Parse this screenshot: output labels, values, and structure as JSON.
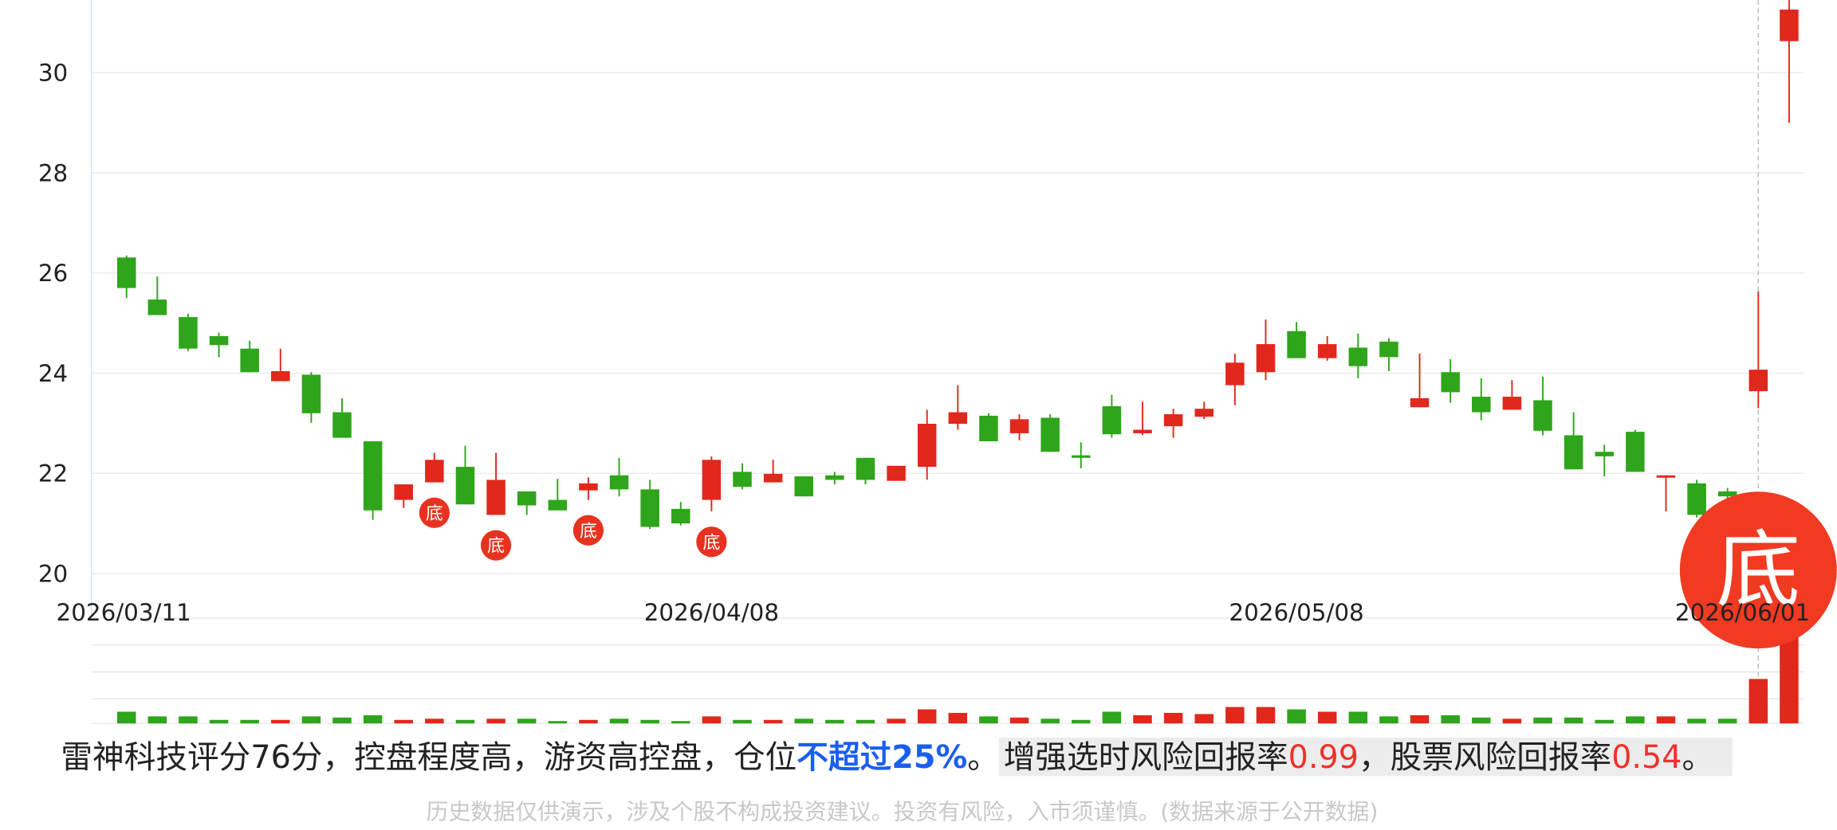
{
  "chart_data": {
    "type": "candlestick",
    "categories": [
      "2026/03/11",
      null,
      null,
      null,
      null,
      null,
      null,
      null,
      null,
      null,
      null,
      null,
      null,
      null,
      null,
      null,
      null,
      null,
      null,
      "2026/04/08",
      null,
      null,
      null,
      null,
      null,
      null,
      null,
      null,
      null,
      null,
      null,
      null,
      null,
      null,
      null,
      null,
      null,
      null,
      "2026/05/08",
      null,
      null,
      null,
      null,
      null,
      null,
      null,
      null,
      null,
      null,
      null,
      null,
      null,
      null,
      "2026/06/01",
      null
    ],
    "open": [
      26.31,
      25.47,
      25.12,
      24.74,
      24.49,
      23.84,
      23.97,
      23.22,
      22.64,
      21.47,
      21.82,
      22.13,
      21.17,
      21.64,
      21.47,
      21.66,
      21.96,
      21.68,
      21.29,
      21.47,
      22.03,
      21.82,
      21.94,
      21.96,
      22.31,
      21.85,
      22.13,
      22.99,
      23.15,
      22.8,
      23.11,
      22.36,
      23.34,
      22.8,
      22.94,
      23.13,
      23.76,
      24.02,
      24.84,
      24.3,
      24.51,
      24.63,
      23.32,
      24.02,
      23.53,
      23.27,
      23.46,
      22.76,
      22.43,
      22.83,
      21.92,
      21.8,
      21.64,
      23.64,
      30.63
    ],
    "high": [
      26.35,
      25.93,
      25.19,
      24.81,
      24.65,
      24.49,
      24.02,
      23.5,
      22.64,
      21.78,
      22.41,
      22.55,
      22.41,
      21.64,
      21.89,
      21.92,
      22.31,
      21.87,
      21.43,
      22.34,
      22.2,
      22.27,
      21.94,
      22.03,
      22.31,
      22.15,
      23.27,
      23.76,
      23.2,
      23.18,
      23.18,
      22.62,
      23.57,
      23.43,
      23.29,
      23.43,
      24.39,
      25.07,
      25.02,
      24.74,
      24.79,
      24.7,
      24.39,
      24.28,
      23.9,
      23.86,
      23.93,
      23.22,
      22.57,
      22.87,
      21.96,
      21.87,
      21.71,
      25.63,
      31.45
    ],
    "low": [
      25.5,
      25.16,
      24.44,
      24.32,
      24.02,
      23.9,
      23.01,
      22.71,
      21.07,
      21.31,
      21.82,
      21.38,
      21.17,
      21.17,
      21.26,
      21.47,
      21.54,
      20.89,
      20.96,
      21.24,
      21.68,
      21.82,
      21.54,
      21.78,
      21.78,
      21.85,
      21.87,
      22.87,
      22.64,
      22.66,
      22.43,
      22.1,
      22.71,
      22.76,
      22.71,
      23.08,
      23.36,
      23.86,
      24.3,
      24.25,
      23.9,
      24.04,
      23.32,
      23.41,
      23.06,
      23.27,
      22.76,
      22.08,
      21.94,
      22.03,
      21.24,
      21.12,
      21.4,
      23.3,
      29.0
    ],
    "close": [
      25.7,
      25.16,
      24.49,
      24.56,
      24.02,
      24.04,
      23.2,
      22.71,
      21.26,
      21.78,
      22.27,
      21.38,
      21.87,
      21.36,
      21.26,
      21.8,
      21.68,
      20.93,
      21.0,
      22.27,
      21.73,
      21.99,
      21.54,
      21.87,
      21.87,
      22.15,
      22.99,
      23.22,
      22.64,
      23.08,
      22.43,
      22.31,
      22.78,
      22.87,
      23.18,
      23.29,
      24.21,
      24.58,
      24.3,
      24.58,
      24.14,
      24.32,
      23.5,
      23.62,
      23.22,
      23.53,
      22.85,
      22.08,
      22.34,
      22.03,
      21.96,
      21.17,
      21.54,
      24.07,
      31.26
    ],
    "volume": [
      10,
      6,
      6,
      3,
      3,
      3,
      6,
      5,
      7,
      3,
      4,
      3,
      4,
      4,
      2,
      3,
      4,
      3,
      2,
      6,
      3,
      3,
      4,
      3,
      3,
      4,
      12,
      9,
      6,
      5,
      4,
      3,
      10,
      7,
      9,
      8,
      14,
      14,
      12,
      10,
      10,
      6,
      7,
      7,
      5,
      4,
      5,
      5,
      3,
      6,
      6,
      4,
      4,
      38,
      78
    ],
    "ylim": [
      19.11,
      31.45
    ],
    "yticks": [
      20,
      22,
      24,
      26,
      28,
      30
    ],
    "volume_ylim": [
      0,
      67
    ],
    "up_color": "#e0281c",
    "down_color": "#2ea51a",
    "grid": true,
    "markers": [
      {
        "index": 10,
        "label": "底"
      },
      {
        "index": 12,
        "label": "底"
      },
      {
        "index": 15,
        "label": "底"
      },
      {
        "index": 19,
        "label": "底"
      }
    ],
    "signal": {
      "index": 53,
      "label": "底"
    }
  },
  "summary": {
    "text": "雷神科技评分76分，控盘程度高，游资高控盘，仓位",
    "position": "不超过25%",
    "sep": "。",
    "metric1_label": "增强选时风险回报率",
    "metric1_value": "0.99",
    "metric2_label": "，股票风险回报率",
    "metric2_value": "0.54",
    "end": "。"
  },
  "disclaimer": "历史数据仅供演示，涉及个股不构成投资建议。投资有风险，入市须谨慎。(数据来源于公开数据)"
}
